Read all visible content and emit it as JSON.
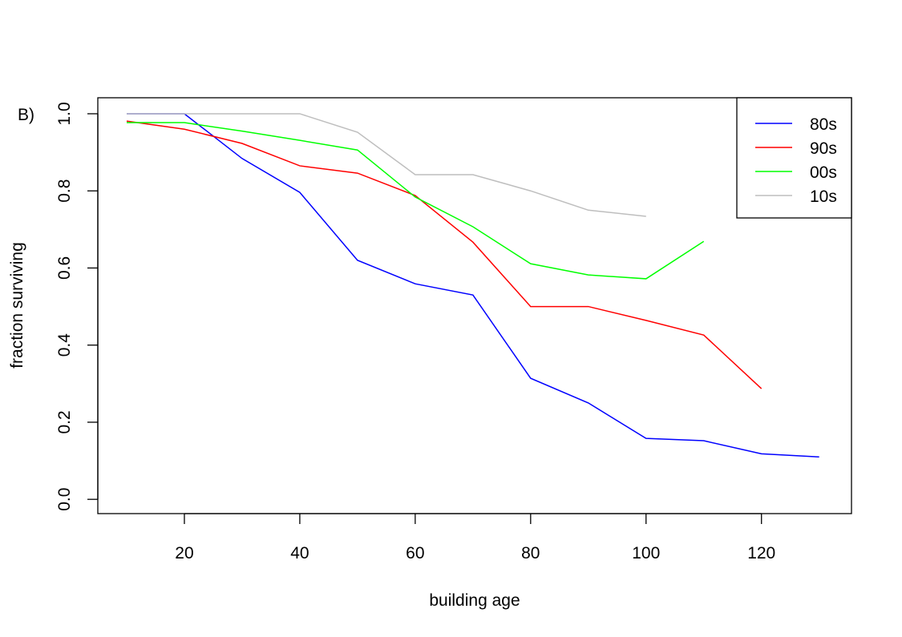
{
  "panel_label": "B)",
  "chart_data": {
    "type": "line",
    "title": "",
    "xlabel": "building age",
    "ylabel": "fraction surviving",
    "xlim": [
      5,
      135.6
    ],
    "ylim": [
      -0.037,
      1.0415
    ],
    "xticks": [
      20,
      40,
      60,
      80,
      100,
      120
    ],
    "yticks": [
      0.0,
      0.2,
      0.4,
      0.6,
      0.8,
      1.0
    ],
    "xtick_labels": [
      "20",
      "40",
      "60",
      "80",
      "100",
      "120"
    ],
    "ytick_labels": [
      "0.0",
      "0.2",
      "0.4",
      "0.6",
      "0.8",
      "1.0"
    ],
    "grid": false,
    "legend_position": "top-right",
    "series": [
      {
        "name": "80s",
        "color": "#0000ff",
        "x": [
          10,
          20,
          30,
          40,
          50,
          60,
          70,
          80,
          90,
          100,
          110,
          120,
          130
        ],
        "y": [
          1.0,
          1.0,
          0.884,
          0.796,
          0.62,
          0.559,
          0.53,
          0.314,
          0.25,
          0.158,
          0.152,
          0.118,
          0.11
        ]
      },
      {
        "name": "90s",
        "color": "#ff0000",
        "x": [
          10,
          20,
          30,
          40,
          50,
          60,
          70,
          80,
          90,
          100,
          110,
          120
        ],
        "y": [
          0.981,
          0.96,
          0.923,
          0.865,
          0.846,
          0.788,
          0.667,
          0.5,
          0.5,
          0.464,
          0.426,
          0.287
        ]
      },
      {
        "name": "00s",
        "color": "#00ff00",
        "x": [
          10,
          20,
          30,
          40,
          50,
          60,
          70,
          80,
          90,
          100,
          110
        ],
        "y": [
          0.977,
          0.977,
          0.955,
          0.931,
          0.906,
          0.784,
          0.707,
          0.611,
          0.582,
          0.572,
          0.669
        ]
      },
      {
        "name": "10s",
        "color": "#bebebe",
        "x": [
          10,
          20,
          30,
          40,
          50,
          60,
          70,
          80,
          90,
          100
        ],
        "y": [
          1.0,
          1.0,
          1.0,
          1.0,
          0.952,
          0.842,
          0.842,
          0.8,
          0.75,
          0.734
        ]
      }
    ]
  }
}
